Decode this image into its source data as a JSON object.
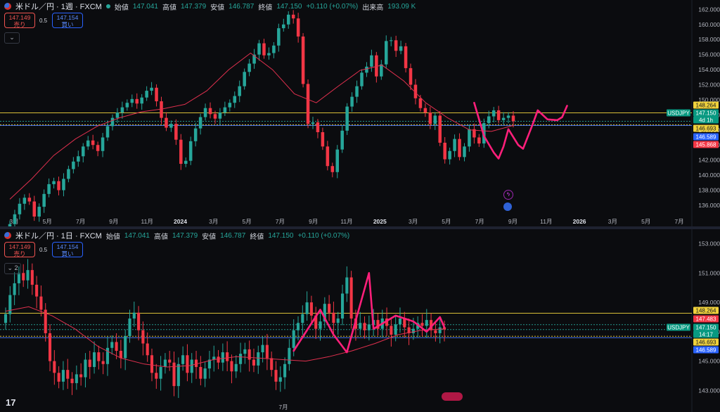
{
  "colors": {
    "up": "#26a69a",
    "down": "#f23645",
    "ma": "#e0304e",
    "pattern": "#ff1f7a",
    "line_yellow": "#f0d23c",
    "line_blue": "#4a7dff",
    "line_teal": "#26a69a"
  },
  "top": {
    "symbol": "米ドル／円 · 1週 · FXCM",
    "ohlc": {
      "open_k": "始値",
      "open": "147.041",
      "high_k": "高値",
      "high": "147.379",
      "low_k": "安値",
      "low": "146.787",
      "close_k": "終値",
      "close": "147.150",
      "change": "+0.110 (+0.07%)",
      "vol_k": "出来高",
      "vol": "193.09 K"
    },
    "sell": {
      "price": "147.149",
      "label": "売り"
    },
    "buy": {
      "price": "147.154",
      "label": "買い"
    },
    "spread": "0.5",
    "collapse": "⌄",
    "price_labels": [
      {
        "text": "148.264",
        "kind": "yellow"
      },
      {
        "text": "USDJPY",
        "kind": "tag"
      },
      {
        "text": "147.150",
        "kind": "teal"
      },
      {
        "text": "4d 1h",
        "kind": "teal"
      },
      {
        "text": "146.693",
        "kind": "yellow"
      },
      {
        "text": "146.589",
        "kind": "blue"
      },
      {
        "text": "145.868",
        "kind": "red"
      }
    ]
  },
  "bottom": {
    "symbol": "米ドル／円 · 1日 · FXCM",
    "ohlc": {
      "open_k": "始値",
      "open": "147.041",
      "high_k": "高値",
      "high": "147.379",
      "low_k": "安値",
      "low": "146.787",
      "close_k": "終値",
      "close": "147.150",
      "change": "+0.110 (+0.07%)"
    },
    "sell": {
      "price": "147.149",
      "label": "売り"
    },
    "buy": {
      "price": "147.154",
      "label": "買い"
    },
    "spread": "0.5",
    "collapse": "⌄ 2",
    "price_labels": [
      {
        "text": "148.264",
        "kind": "yellow"
      },
      {
        "text": "147.483",
        "kind": "red"
      },
      {
        "text": "USDJPY",
        "kind": "tag"
      },
      {
        "text": "147.150",
        "kind": "teal"
      },
      {
        "text": "14:17",
        "kind": "teal"
      },
      {
        "text": "146.693",
        "kind": "yellow"
      },
      {
        "text": "146.589",
        "kind": "blue"
      }
    ],
    "x_tick": "7月",
    "logo": "17"
  },
  "chart_data": [
    {
      "type": "candlestick",
      "title": "米ドル／円 · 1週 · FXCM",
      "x_ticks": [
        "3月",
        "5月",
        "7月",
        "9月",
        "11月",
        "2024",
        "3月",
        "5月",
        "7月",
        "9月",
        "11月",
        "2025",
        "3月",
        "5月",
        "7月",
        "9月",
        "11月",
        "2026",
        "3月",
        "5月",
        "7月"
      ],
      "y_ticks": [
        136,
        138,
        140,
        142,
        144,
        146,
        148,
        150,
        152,
        154,
        156,
        158,
        160,
        162
      ],
      "ylim": [
        134.5,
        162.5
      ],
      "horizontal_lines": [
        148.264,
        147.15,
        146.693,
        146.589
      ],
      "series": [
        {
          "name": "close_path",
          "values": [
            133.5,
            134.8,
            136.2,
            137.0,
            136.5,
            134.5,
            135.8,
            137.5,
            138.8,
            139.2,
            138.0,
            139.5,
            140.8,
            141.8,
            142.5,
            143.8,
            144.6,
            144.0,
            143.2,
            145.0,
            146.5,
            147.6,
            148.3,
            149.0,
            149.6,
            150.1,
            149.5,
            150.3,
            151.2,
            151.6,
            149.8,
            147.6,
            146.3,
            146.8,
            144.7,
            141.5,
            141.9,
            144.5,
            146.2,
            147.7,
            148.9,
            148.1,
            147.5,
            148.3,
            149.0,
            149.6,
            150.5,
            151.8,
            153.7,
            154.8,
            156.0,
            157.5,
            155.9,
            156.2,
            157.2,
            159.5,
            160.0,
            161.3,
            160.8,
            158.4,
            152.1,
            146.8,
            147.0,
            145.7,
            143.8,
            141.2,
            140.4,
            143.4,
            145.9,
            149.1,
            150.4,
            151.8,
            153.6,
            154.4,
            155.9,
            153.1,
            154.7,
            157.8,
            157.9,
            156.5,
            157.1,
            154.2,
            152.0,
            150.2,
            148.9,
            148.3,
            146.8,
            147.9,
            144.3,
            142.1,
            143.2,
            144.8,
            142.4,
            143.8,
            146.1,
            145.0,
            144.2,
            146.9,
            147.8,
            148.6,
            147.3,
            147.6,
            147.9,
            147.15
          ]
        },
        {
          "name": "moving_average",
          "values": [
            136.8,
            139.5,
            142.6,
            144.8,
            146.5,
            147.6,
            148.4,
            148.8,
            149.4,
            151.2,
            154.0,
            156.2,
            154.0,
            150.8,
            149.6,
            151.8,
            153.9,
            154.6,
            152.5,
            149.6,
            147.6,
            146.0,
            145.8,
            146.6
          ]
        }
      ]
    },
    {
      "type": "candlestick",
      "title": "米ドル／円 · 1日 · FXCM",
      "x_ticks": [
        "7月"
      ],
      "y_ticks": [
        143,
        145,
        147,
        149,
        151,
        153
      ],
      "ylim": [
        142.3,
        153.6
      ],
      "horizontal_lines": [
        148.264,
        147.483,
        147.15,
        146.693,
        146.589
      ],
      "series": [
        {
          "name": "close_path",
          "values": [
            148.2,
            149.5,
            150.3,
            151.0,
            150.5,
            151.2,
            150.2,
            149.4,
            148.5,
            146.9,
            145.0,
            144.2,
            143.6,
            144.4,
            143.8,
            143.5,
            144.1,
            143.9,
            145.1,
            144.6,
            145.6,
            145.0,
            144.8,
            145.9,
            146.3,
            145.7,
            145.2,
            146.7,
            147.9,
            148.3,
            147.1,
            146.2,
            145.4,
            144.2,
            143.8,
            144.6,
            145.1,
            144.9,
            143.3,
            144.8,
            145.4,
            144.2,
            145.1,
            144.6,
            143.8,
            144.5,
            145.1,
            145.3,
            144.9,
            145.6,
            145.0,
            144.3,
            144.8,
            145.5,
            145.8,
            145.1,
            144.7,
            145.6,
            146.1,
            145.2,
            144.4,
            143.6,
            143.9,
            144.8,
            145.9,
            147.1,
            147.6,
            148.2,
            149.0,
            148.1,
            147.2,
            147.7,
            148.9,
            148.3,
            147.6,
            147.9,
            149.6,
            150.7,
            147.9,
            147.2,
            147.6,
            147.1,
            147.5,
            147.8,
            147.2,
            147.9,
            147.4,
            146.8,
            147.5,
            147.9,
            147.3,
            146.9,
            147.2,
            147.6,
            147.4,
            147.8,
            147.1,
            146.9,
            147.3,
            147.15
          ]
        },
        {
          "name": "moving_average",
          "values": [
            148.4,
            148.7,
            148.1,
            147.2,
            146.0,
            145.2,
            144.8,
            144.6,
            144.7,
            145.1,
            145.3,
            145.2,
            145.1,
            145.0,
            145.3,
            145.7,
            146.2,
            146.8,
            147.1,
            147.2
          ]
        }
      ]
    }
  ]
}
